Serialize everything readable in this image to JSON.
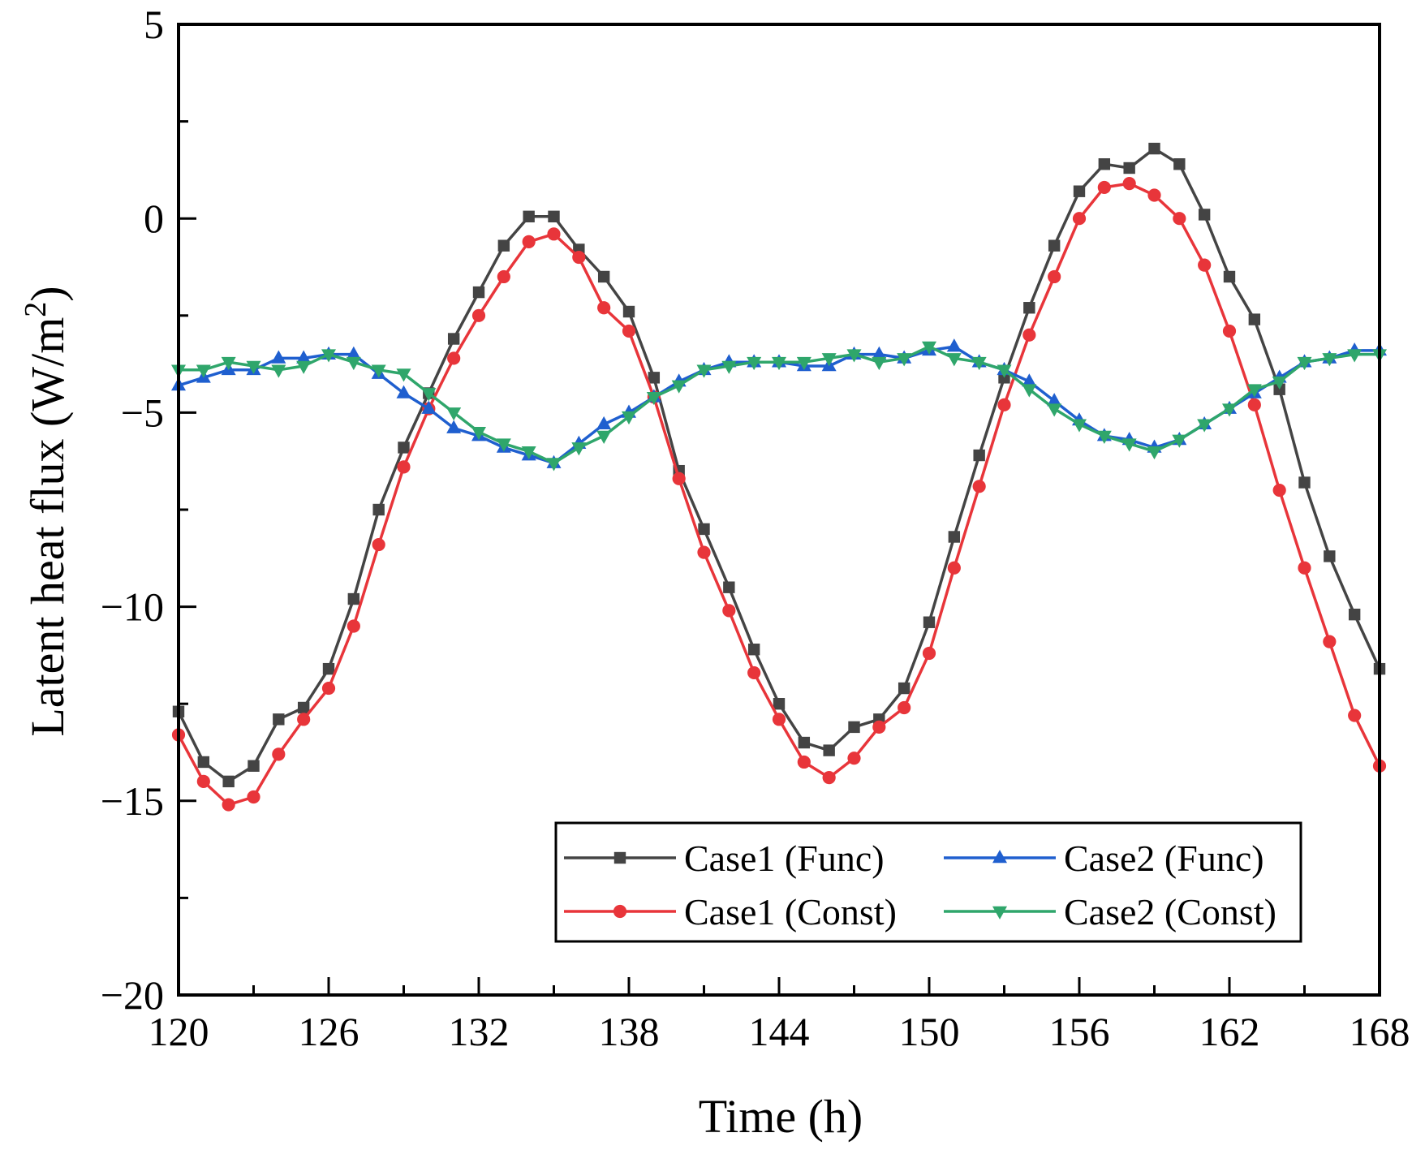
{
  "chart_data": {
    "type": "line",
    "title": "",
    "xlabel": "Time (h)",
    "ylabel": "Latent heat flux (W/m",
    "ylabel_sup": "2",
    "ylabel_close": ")",
    "xlim": [
      120,
      168
    ],
    "ylim": [
      -20,
      5
    ],
    "xticks": [
      120,
      126,
      132,
      138,
      144,
      150,
      156,
      162,
      168
    ],
    "yticks": [
      5,
      0,
      -5,
      -10,
      -15,
      -20
    ],
    "legend_position": "bottom-right",
    "x": [
      120,
      121,
      122,
      123,
      124,
      125,
      126,
      127,
      128,
      129,
      130,
      131,
      132,
      133,
      134,
      135,
      136,
      137,
      138,
      139,
      140,
      141,
      142,
      143,
      144,
      145,
      146,
      147,
      148,
      149,
      150,
      151,
      152,
      153,
      154,
      155,
      156,
      157,
      158,
      159,
      160,
      161,
      162,
      163,
      164,
      165,
      166,
      167,
      168
    ],
    "series": [
      {
        "name": "Case1 (Func)",
        "color": "#444444",
        "marker": "square",
        "values": [
          -12.7,
          -14.0,
          -14.5,
          -14.1,
          -12.9,
          -12.6,
          -11.6,
          -9.8,
          -7.5,
          -5.9,
          -4.5,
          -3.1,
          -1.9,
          -0.7,
          0.05,
          0.05,
          -0.8,
          -1.5,
          -2.4,
          -4.1,
          -6.5,
          -8.0,
          -9.5,
          -11.1,
          -12.5,
          -13.5,
          -13.7,
          -13.1,
          -12.9,
          -12.1,
          -10.4,
          -8.2,
          -6.1,
          -4.1,
          -2.3,
          -0.7,
          0.7,
          1.4,
          1.3,
          1.8,
          1.4,
          0.1,
          -1.5,
          -2.6,
          -4.4,
          -6.8,
          -8.7,
          -10.2,
          -11.6
        ]
      },
      {
        "name": "Case1 (Const)",
        "color": "#e8353a",
        "marker": "circle",
        "values": [
          -13.3,
          -14.5,
          -15.1,
          -14.9,
          -13.8,
          -12.9,
          -12.1,
          -10.5,
          -8.4,
          -6.4,
          -4.9,
          -3.6,
          -2.5,
          -1.5,
          -0.6,
          -0.4,
          -1.0,
          -2.3,
          -2.9,
          -4.6,
          -6.7,
          -8.6,
          -10.1,
          -11.7,
          -12.9,
          -14.0,
          -14.4,
          -13.9,
          -13.1,
          -12.6,
          -11.2,
          -9.0,
          -6.9,
          -4.8,
          -3.0,
          -1.5,
          0.0,
          0.8,
          0.9,
          0.6,
          0.0,
          -1.2,
          -2.9,
          -4.8,
          -7.0,
          -9.0,
          -10.9,
          -12.8,
          -14.1
        ]
      },
      {
        "name": "Case2 (Func)",
        "color": "#1f5fcf",
        "marker": "triangle-up",
        "values": [
          -4.3,
          -4.1,
          -3.9,
          -3.9,
          -3.6,
          -3.6,
          -3.5,
          -3.5,
          -4.0,
          -4.5,
          -4.9,
          -5.4,
          -5.6,
          -5.9,
          -6.1,
          -6.3,
          -5.8,
          -5.3,
          -5.0,
          -4.6,
          -4.2,
          -3.9,
          -3.7,
          -3.7,
          -3.7,
          -3.8,
          -3.8,
          -3.5,
          -3.5,
          -3.6,
          -3.4,
          -3.3,
          -3.7,
          -3.9,
          -4.2,
          -4.7,
          -5.2,
          -5.6,
          -5.7,
          -5.9,
          -5.7,
          -5.3,
          -4.9,
          -4.5,
          -4.1,
          -3.7,
          -3.6,
          -3.4,
          -3.4
        ]
      },
      {
        "name": "Case2 (Const)",
        "color": "#2fa66b",
        "marker": "triangle-down",
        "values": [
          -3.9,
          -3.9,
          -3.7,
          -3.8,
          -3.9,
          -3.8,
          -3.5,
          -3.7,
          -3.9,
          -4.0,
          -4.5,
          -5.0,
          -5.5,
          -5.8,
          -6.0,
          -6.3,
          -5.9,
          -5.6,
          -5.1,
          -4.6,
          -4.3,
          -3.9,
          -3.8,
          -3.7,
          -3.7,
          -3.7,
          -3.6,
          -3.5,
          -3.7,
          -3.6,
          -3.3,
          -3.6,
          -3.7,
          -3.9,
          -4.4,
          -4.9,
          -5.3,
          -5.6,
          -5.8,
          -6.0,
          -5.7,
          -5.3,
          -4.9,
          -4.4,
          -4.2,
          -3.7,
          -3.6,
          -3.5,
          -3.5
        ]
      }
    ]
  }
}
